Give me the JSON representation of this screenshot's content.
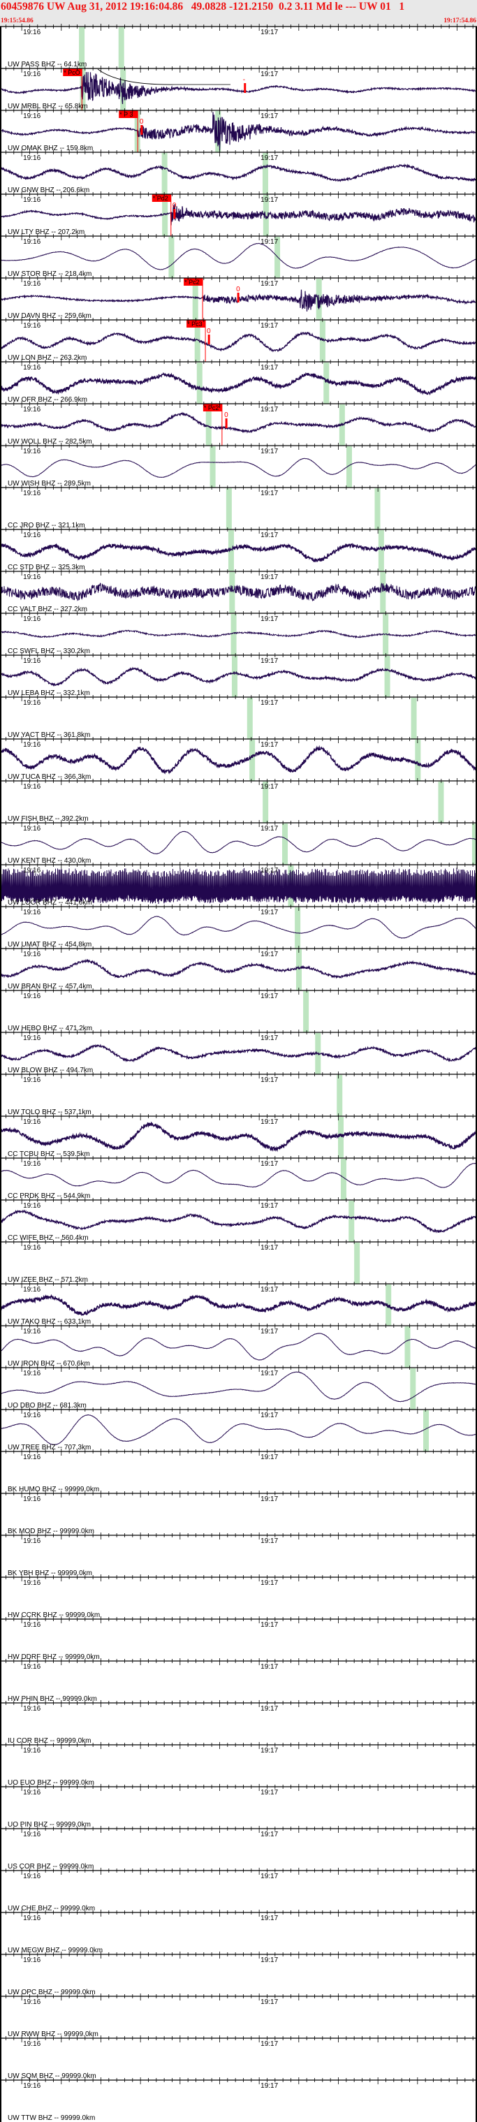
{
  "header": {
    "title": "60459876 UW Aug 31, 2012 19:16:04.86   49.0828 -121.2150  0.2 3.11 Md le --- UW 01   1",
    "start_time": "19:15:54.86",
    "end_time": "19:17:54.86"
  },
  "chart_data": {
    "type": "line",
    "title": "",
    "x_axis": {
      "start": "19:15:54.86",
      "end": "19:17:54.86",
      "tick_labels": [
        "19:16",
        "19:17"
      ],
      "major_tick_s": 10,
      "minor_tick_s": 2
    },
    "colors": {
      "trace": "#22084e",
      "pick": "#ff0000",
      "predicted_arrival": "#bde5c0",
      "axis": "#000000"
    },
    "stations": [
      {
        "label": "UW PASS BHZ -- 64.1km",
        "distance_km": 64.1,
        "trace": "none"
      },
      {
        "label": "UW MRBL BHZ -- 65.8km",
        "distance_km": 65.8,
        "trace": "event1",
        "pick": {
          "label": "* PcO",
          "time": "19:16:15.2"
        },
        "marker": {
          "label": "-",
          "time": "19:16:56.4"
        }
      },
      {
        "label": "UW OMAK BHZ -- 159.8km",
        "distance_km": 159.8,
        "trace": "event2",
        "pick": {
          "label": "* P 3",
          "time": "19:16:29.3"
        },
        "marker": {
          "label": "0",
          "time": "19:16:30.3"
        }
      },
      {
        "label": "UW GNW BHZ -- 206.6km",
        "distance_km": 206.6,
        "trace": "noisy"
      },
      {
        "label": "UW LTY BHZ -- 207.2km",
        "distance_km": 207.2,
        "trace": "event3",
        "pick": {
          "label": "* Pd2",
          "time": "19:16:37.7"
        },
        "marker": {
          "label": "0",
          "time": "19:16:38.6"
        }
      },
      {
        "label": "UW STOR BHZ -- 218.4km",
        "distance_km": 218.4,
        "trace": "smooth"
      },
      {
        "label": "UW DAVN BHZ -- 259.6km",
        "distance_km": 259.6,
        "trace": "event4",
        "pick": {
          "label": "* Pc2",
          "time": "19:16:45.7"
        },
        "marker": {
          "label": "0",
          "time": "19:16:54.7"
        }
      },
      {
        "label": "UW LON BHZ -- 263.2km",
        "distance_km": 263.2,
        "trace": "noisy",
        "pick": {
          "label": "* Pc3",
          "time": "19:16:46.4"
        },
        "marker": {
          "label": "0",
          "time": "19:16:47.3"
        }
      },
      {
        "label": "UW OFR BHZ -- 266.9km",
        "distance_km": 266.9,
        "trace": "thick"
      },
      {
        "label": "UW WOLL BHZ -- 282.5km",
        "distance_km": 282.5,
        "trace": "noisy",
        "pick": {
          "label": "* Pc2",
          "time": "19:16:50.6"
        },
        "marker": {
          "label": "0",
          "time": "19:16:51.7"
        }
      },
      {
        "label": "UW WISH BHZ -- 289.5km",
        "distance_km": 289.5,
        "trace": "smooth"
      },
      {
        "label": "CC JRO BHZ -- 321.1km",
        "distance_km": 321.1,
        "trace": "none"
      },
      {
        "label": "CC STD BHZ -- 325.3km",
        "distance_km": 325.3,
        "trace": "thick"
      },
      {
        "label": "CC VALT BHZ -- 327.2km",
        "distance_km": 327.2,
        "trace": "hf"
      },
      {
        "label": "CC SWFL BHZ -- 330.2km",
        "distance_km": 330.2,
        "trace": "quiet"
      },
      {
        "label": "UW LEBA BHZ -- 332.1km",
        "distance_km": 332.1,
        "trace": "noisy"
      },
      {
        "label": "UW YACT BHZ -- 361.8km",
        "distance_km": 361.8,
        "trace": "none"
      },
      {
        "label": "UW TUCA BHZ -- 366.3km",
        "distance_km": 366.3,
        "trace": "thick"
      },
      {
        "label": "UW FISH BHZ -- 392.2km",
        "distance_km": 392.2,
        "trace": "none"
      },
      {
        "label": "UW KENT BHZ -- 430.0km",
        "distance_km": 430.0,
        "trace": "smooth"
      },
      {
        "label": "UW LOCR BHZ -- 441.6km",
        "distance_km": 441.6,
        "trace": "dense"
      },
      {
        "label": "UW UMAT BHZ -- 454.8km",
        "distance_km": 454.8,
        "trace": "smooth"
      },
      {
        "label": "UW BRAN BHZ -- 457.4km",
        "distance_km": 457.4,
        "trace": "noisy"
      },
      {
        "label": "UW HEBO BHZ -- 471.2km",
        "distance_km": 471.2,
        "trace": "none"
      },
      {
        "label": "UW BLOW BHZ -- 494.7km",
        "distance_km": 494.7,
        "trace": "noisy"
      },
      {
        "label": "UW TOLO BHZ -- 537.1km",
        "distance_km": 537.1,
        "trace": "none"
      },
      {
        "label": "CC TCBU BHZ -- 539.5km",
        "distance_km": 539.5,
        "trace": "thick"
      },
      {
        "label": "CC PRDK BHZ -- 544.9km",
        "distance_km": 544.9,
        "trace": "smooth"
      },
      {
        "label": "CC WIFE BHZ -- 560.4km",
        "distance_km": 560.4,
        "trace": "noisy"
      },
      {
        "label": "UW IZEE BHZ -- 571.2km",
        "distance_km": 571.2,
        "trace": "none"
      },
      {
        "label": "UW TAKO BHZ -- 633.1km",
        "distance_km": 633.1,
        "trace": "thick"
      },
      {
        "label": "UW IRON BHZ -- 670.6km",
        "distance_km": 670.6,
        "trace": "smooth"
      },
      {
        "label": "UO DBO BHZ -- 681.3km",
        "distance_km": 681.3,
        "trace": "smooth"
      },
      {
        "label": "UW TREE BHZ -- 707.3km",
        "distance_km": 707.3,
        "trace": "smooth"
      },
      {
        "label": "BK HUMO BHZ -- 99999.0km",
        "distance_km": 99999.0,
        "trace": "none"
      },
      {
        "label": "BK MOD BHZ -- 99999.0km",
        "distance_km": 99999.0,
        "trace": "none"
      },
      {
        "label": "BK YBH BHZ -- 99999.0km",
        "distance_km": 99999.0,
        "trace": "none"
      },
      {
        "label": "HW CCRK BHZ -- 99999.0km",
        "distance_km": 99999.0,
        "trace": "none"
      },
      {
        "label": "HW DDRF BHZ -- 99999.0km",
        "distance_km": 99999.0,
        "trace": "none"
      },
      {
        "label": "HW PHIN BHZ -- 99999.0km",
        "distance_km": 99999.0,
        "trace": "none"
      },
      {
        "label": "IU COR BHZ -- 99999.0km",
        "distance_km": 99999.0,
        "trace": "none"
      },
      {
        "label": "UO EUO BHZ -- 99999.0km",
        "distance_km": 99999.0,
        "trace": "none"
      },
      {
        "label": "UO PIN BHZ -- 99999.0km",
        "distance_km": 99999.0,
        "trace": "none"
      },
      {
        "label": "US COR BHZ -- 99999.0km",
        "distance_km": 99999.0,
        "trace": "none"
      },
      {
        "label": "UW CHE BHZ -- 99999.0km",
        "distance_km": 99999.0,
        "trace": "none"
      },
      {
        "label": "UW MEGW BHZ -- 99999.0km",
        "distance_km": 99999.0,
        "trace": "none"
      },
      {
        "label": "UW OPC BHZ -- 99999.0km",
        "distance_km": 99999.0,
        "trace": "none"
      },
      {
        "label": "UW RWW BHZ -- 99999.0km",
        "distance_km": 99999.0,
        "trace": "none"
      },
      {
        "label": "UW SQM BHZ -- 99999.0km",
        "distance_km": 99999.0,
        "trace": "none"
      },
      {
        "label": "UW TTW BHZ -- 99999.0km",
        "distance_km": 99999.0,
        "trace": "none"
      }
    ]
  }
}
